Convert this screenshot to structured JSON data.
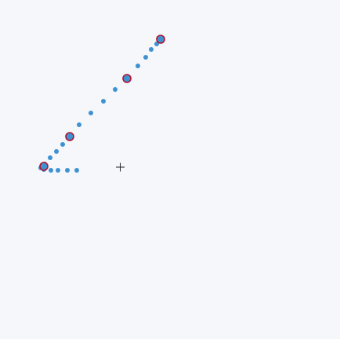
{
  "canvas": {
    "background": "#f5f7fa"
  },
  "colors": {
    "trail_point": "#3f92d2",
    "marker_fill": "#3f92d2",
    "marker_outline": "#b0122e",
    "crosshair": "#222222"
  },
  "icons": {
    "cursor": "crosshair-icon"
  }
}
